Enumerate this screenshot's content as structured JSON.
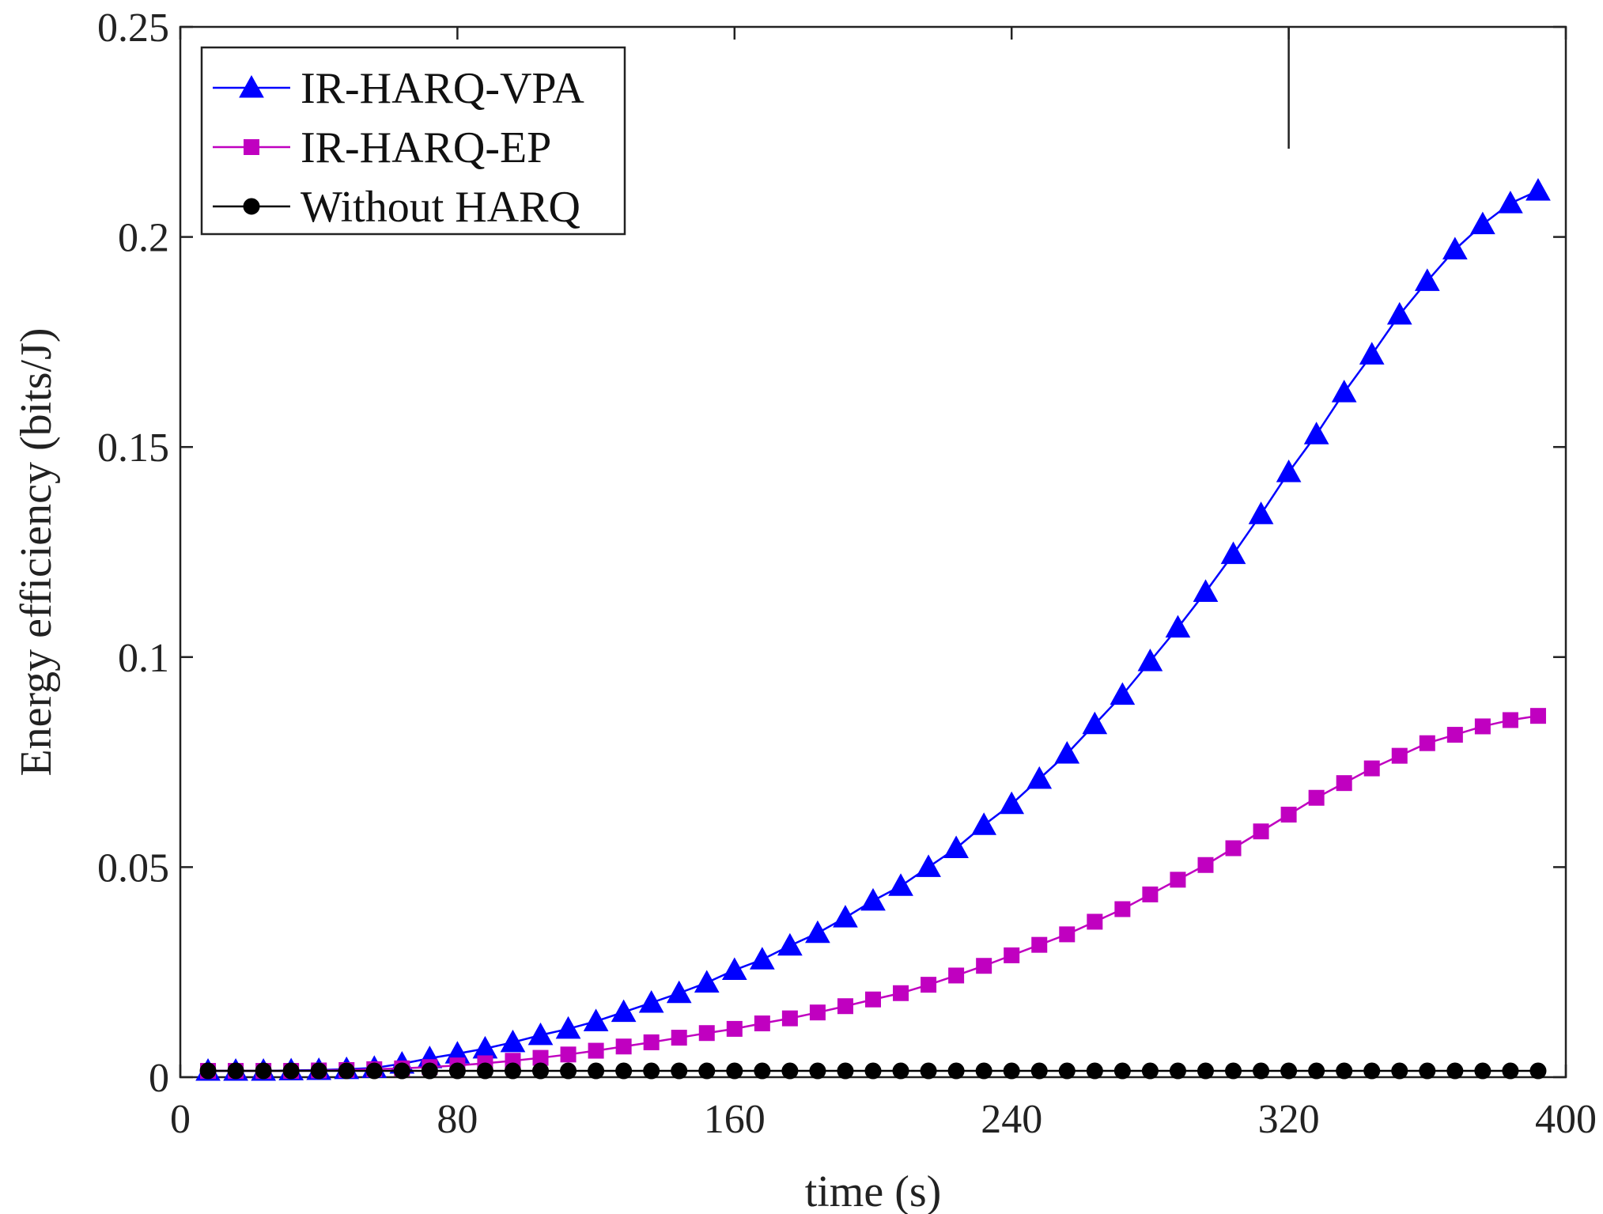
{
  "chart_data": {
    "type": "line",
    "title": "",
    "xlabel": "time (s)",
    "ylabel": "Energy efficiency (bits/J)",
    "xlim": [
      0,
      400
    ],
    "ylim": [
      0,
      0.25
    ],
    "xticks": [
      0,
      80,
      160,
      240,
      320,
      400
    ],
    "xtick_labels": [
      "0",
      "80",
      "160",
      "240",
      "320",
      "400"
    ],
    "yticks": [
      0,
      0.05,
      0.1,
      0.15,
      0.2,
      0.25
    ],
    "ytick_labels": [
      "0",
      "0.05",
      "0.1",
      "0.15",
      "0.2",
      "0.25"
    ],
    "grid": false,
    "legend_position": "top-left",
    "x": [
      8,
      16,
      24,
      32,
      40,
      48,
      56,
      64,
      72,
      80,
      88,
      96,
      104,
      112,
      120,
      128,
      136,
      144,
      152,
      160,
      168,
      176,
      184,
      192,
      200,
      208,
      216,
      224,
      232,
      240,
      248,
      256,
      264,
      272,
      280,
      288,
      296,
      304,
      312,
      320,
      328,
      336,
      344,
      352,
      360,
      368,
      376,
      384,
      392
    ],
    "series": [
      {
        "name": "IR-HARQ-VPA",
        "color": "#0000ff",
        "marker": "triangle",
        "values": [
          0.0015,
          0.0015,
          0.0015,
          0.0016,
          0.0017,
          0.0019,
          0.0022,
          0.0032,
          0.0045,
          0.0056,
          0.0068,
          0.0083,
          0.01,
          0.0115,
          0.0133,
          0.0155,
          0.0177,
          0.02,
          0.0225,
          0.0255,
          0.028,
          0.0313,
          0.0343,
          0.038,
          0.042,
          0.0455,
          0.05,
          0.0545,
          0.06,
          0.065,
          0.071,
          0.077,
          0.084,
          0.091,
          0.099,
          0.107,
          0.1155,
          0.1245,
          0.134,
          0.144,
          0.153,
          0.163,
          0.172,
          0.1815,
          0.1895,
          0.197,
          0.203,
          0.208,
          0.211
        ]
      },
      {
        "name": "IR-HARQ-EP",
        "color": "#c000c0",
        "marker": "square",
        "values": [
          0.0015,
          0.0015,
          0.0015,
          0.0015,
          0.0016,
          0.0017,
          0.0019,
          0.0021,
          0.0024,
          0.0028,
          0.0033,
          0.0039,
          0.0046,
          0.0054,
          0.0063,
          0.0073,
          0.0083,
          0.0094,
          0.0105,
          0.0115,
          0.0128,
          0.014,
          0.0154,
          0.0169,
          0.0185,
          0.02,
          0.022,
          0.0242,
          0.0265,
          0.029,
          0.0315,
          0.034,
          0.037,
          0.04,
          0.0435,
          0.047,
          0.0505,
          0.0545,
          0.0585,
          0.0625,
          0.0665,
          0.07,
          0.0735,
          0.0765,
          0.0795,
          0.0815,
          0.0835,
          0.085,
          0.086
        ]
      },
      {
        "name": "Without HARQ",
        "color": "#000000",
        "marker": "circle",
        "values": [
          0.0015,
          0.0015,
          0.0015,
          0.0015,
          0.0015,
          0.0015,
          0.0015,
          0.0015,
          0.0015,
          0.0015,
          0.0015,
          0.0015,
          0.0015,
          0.0015,
          0.0015,
          0.0015,
          0.0015,
          0.0015,
          0.0015,
          0.0015,
          0.0015,
          0.0015,
          0.0015,
          0.0015,
          0.0015,
          0.0015,
          0.0015,
          0.0015,
          0.0015,
          0.0015,
          0.0015,
          0.0015,
          0.0015,
          0.0015,
          0.0015,
          0.0015,
          0.0015,
          0.0015,
          0.0015,
          0.0015,
          0.0015,
          0.0015,
          0.0015,
          0.0015,
          0.0015,
          0.0015,
          0.0015,
          0.0015,
          0.0015
        ]
      }
    ]
  }
}
